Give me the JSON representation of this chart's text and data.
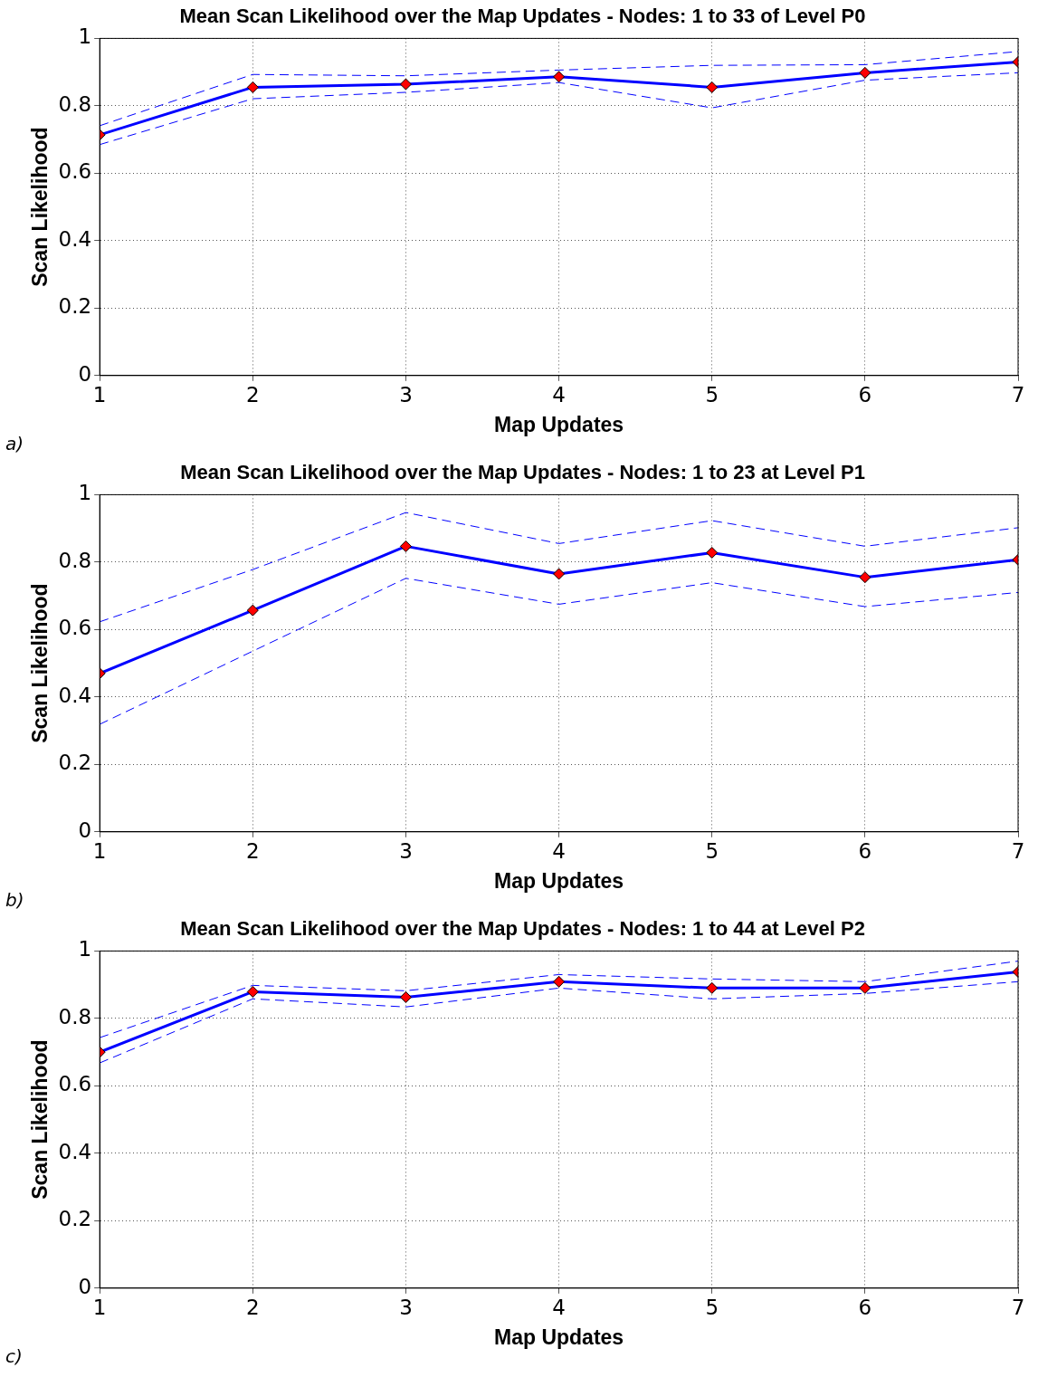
{
  "chart_data": [
    {
      "type": "line",
      "title": "Mean Scan Likelihood over the Map Updates - Nodes: 1 to 33 of Level P0",
      "xlabel": "Map Updates",
      "ylabel": "Scan Likelihood",
      "x": [
        1,
        2,
        3,
        4,
        5,
        6,
        7
      ],
      "series": [
        {
          "color": "#0000ff",
          "colors": [
            "#ff0000",
            "#ff0000",
            "#ff0000",
            "#ff0000",
            "#ff0000",
            "#ff0000",
            "#ff0000"
          ],
          "values": [
            0.714,
            0.855,
            0.864,
            0.886,
            0.855,
            0.898,
            0.93
          ]
        },
        {
          "color": "#0000ff",
          "line_style": "dashed",
          "marker": "none",
          "values": [
            0.741,
            0.893,
            0.889,
            0.906,
            0.92,
            0.922,
            0.961
          ]
        },
        {
          "color": "#0000ff",
          "line_style": "dashed",
          "marker": "none",
          "values": [
            0.685,
            0.821,
            0.84,
            0.869,
            0.794,
            0.876,
            0.898
          ]
        }
      ],
      "xlim": [
        1,
        7
      ],
      "xticks": [
        1,
        2,
        3,
        4,
        5,
        6,
        7
      ],
      "ylim": [
        0,
        1
      ],
      "yticks": [
        0,
        0.2,
        0.4,
        0.6,
        0.8,
        1
      ],
      "grid": true,
      "legend": false,
      "marker": "diamond",
      "line_style": "solid",
      "annotations": [
        "a)"
      ]
    },
    {
      "type": "line",
      "title": "Mean Scan Likelihood over the Map Updates - Nodes: 1 to 23 at Level P1",
      "xlabel": "Map Updates",
      "ylabel": "Scan Likelihood",
      "x": [
        1,
        2,
        3,
        4,
        5,
        6,
        7
      ],
      "series": [
        {
          "color": "#0000ff",
          "colors": [
            "#ff0000",
            "#ff0000",
            "#ff0000",
            "#ff0000",
            "#ff0000",
            "#ff0000",
            "#ff0000"
          ],
          "values": [
            0.47,
            0.657,
            0.847,
            0.765,
            0.828,
            0.755,
            0.807
          ]
        },
        {
          "color": "#0000ff",
          "line_style": "dashed",
          "marker": "none",
          "values": [
            0.623,
            0.778,
            0.947,
            0.855,
            0.923,
            0.847,
            0.902
          ]
        },
        {
          "color": "#0000ff",
          "line_style": "dashed",
          "marker": "none",
          "values": [
            0.319,
            0.536,
            0.752,
            0.675,
            0.739,
            0.668,
            0.71
          ]
        }
      ],
      "xlim": [
        1,
        7
      ],
      "xticks": [
        1,
        2,
        3,
        4,
        5,
        6,
        7
      ],
      "ylim": [
        0,
        1
      ],
      "yticks": [
        0,
        0.2,
        0.4,
        0.6,
        0.8,
        1
      ],
      "grid": true,
      "legend": false,
      "marker": "diamond",
      "line_style": "solid",
      "annotations": [
        "b)"
      ]
    },
    {
      "type": "line",
      "title": "Mean Scan Likelihood over the Map Updates - Nodes: 1 to 44 at Level P2",
      "xlabel": "Map Updates",
      "ylabel": "Scan Likelihood",
      "x": [
        1,
        2,
        3,
        4,
        5,
        6,
        7
      ],
      "series": [
        {
          "color": "#0000ff",
          "colors": [
            "#ff0000",
            "#ff0000",
            "#ff0000",
            "#ff0000",
            "#ff0000",
            "#ff0000",
            "#ff0000"
          ],
          "values": [
            0.7,
            0.879,
            0.863,
            0.909,
            0.89,
            0.89,
            0.938
          ]
        },
        {
          "color": "#0000ff",
          "line_style": "dashed",
          "marker": "none",
          "values": [
            0.743,
            0.898,
            0.882,
            0.93,
            0.917,
            0.909,
            0.97
          ]
        },
        {
          "color": "#0000ff",
          "line_style": "dashed",
          "marker": "none",
          "values": [
            0.668,
            0.858,
            0.834,
            0.89,
            0.858,
            0.874,
            0.909
          ]
        }
      ],
      "xlim": [
        1,
        7
      ],
      "xticks": [
        1,
        2,
        3,
        4,
        5,
        6,
        7
      ],
      "ylim": [
        0,
        1
      ],
      "yticks": [
        0,
        0.2,
        0.4,
        0.6,
        0.8,
        1
      ],
      "grid": true,
      "legend": false,
      "marker": "diamond",
      "line_style": "solid",
      "annotations": [
        "c)"
      ]
    }
  ]
}
